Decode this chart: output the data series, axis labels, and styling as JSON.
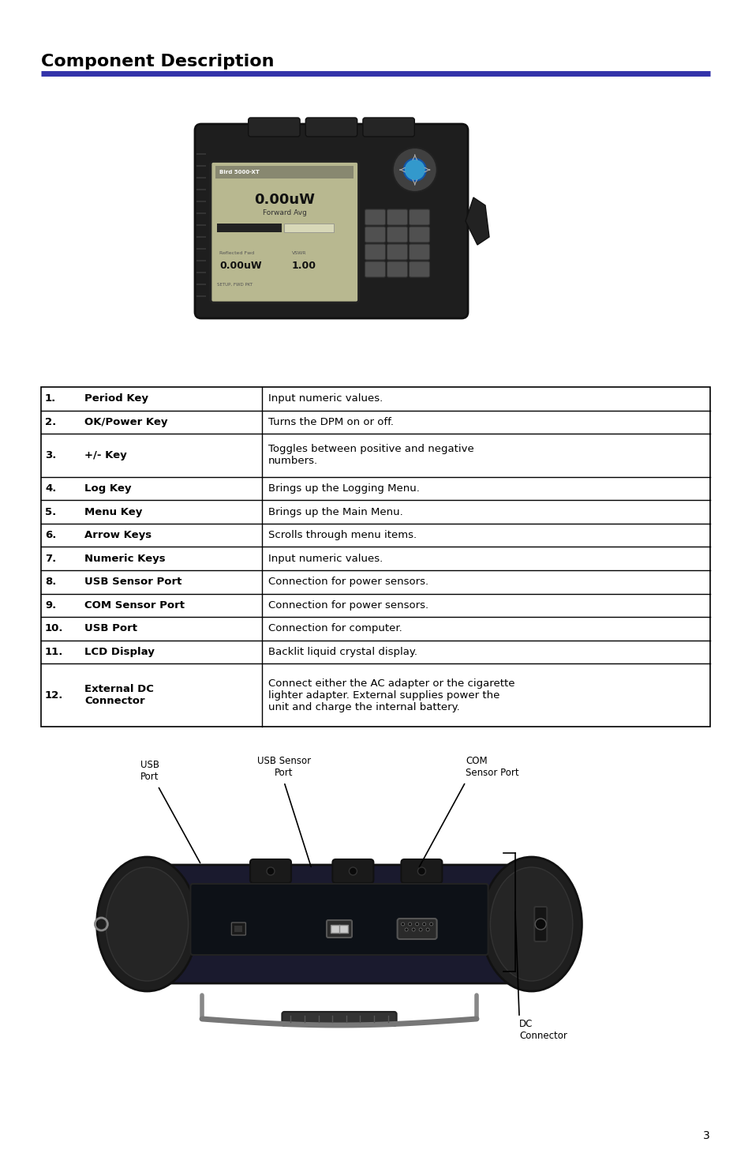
{
  "title": "Component Description",
  "title_color": "#000000",
  "title_fontsize": 16,
  "line_color": "#3333aa",
  "background_color": "#ffffff",
  "table_rows": [
    {
      "num": "1.",
      "key": "Period Key",
      "desc": "Input numeric values."
    },
    {
      "num": "2.",
      "key": "OK/Power Key",
      "desc": "Turns the DPM on or off."
    },
    {
      "num": "3.",
      "key": "+/- Key",
      "desc": "Toggles between positive and negative\nnumbers."
    },
    {
      "num": "4.",
      "key": "Log Key",
      "desc": "Brings up the Logging Menu."
    },
    {
      "num": "5.",
      "key": "Menu Key",
      "desc": "Brings up the Main Menu."
    },
    {
      "num": "6.",
      "key": "Arrow Keys",
      "desc": "Scrolls through menu items."
    },
    {
      "num": "7.",
      "key": "Numeric Keys",
      "desc": "Input numeric values."
    },
    {
      "num": "8.",
      "key": "USB Sensor Port",
      "desc": "Connection for power sensors."
    },
    {
      "num": "9.",
      "key": "COM Sensor Port",
      "desc": "Connection for power sensors."
    },
    {
      "num": "10.",
      "key": "USB Port",
      "desc": "Connection for computer."
    },
    {
      "num": "11.",
      "key": "LCD Display",
      "desc": "Backlit liquid crystal display."
    },
    {
      "num": "12.",
      "key": "External DC\nConnector",
      "desc": "Connect either the AC adapter or the cigarette\nlighter adapter. External supplies power the\nunit and charge the internal battery."
    }
  ],
  "page_number": "3",
  "device_body_color": "#2a2a2a",
  "device_screen_color": "#c8c8a0",
  "device_key_color": "#555555",
  "device_btn_color": "#444444"
}
